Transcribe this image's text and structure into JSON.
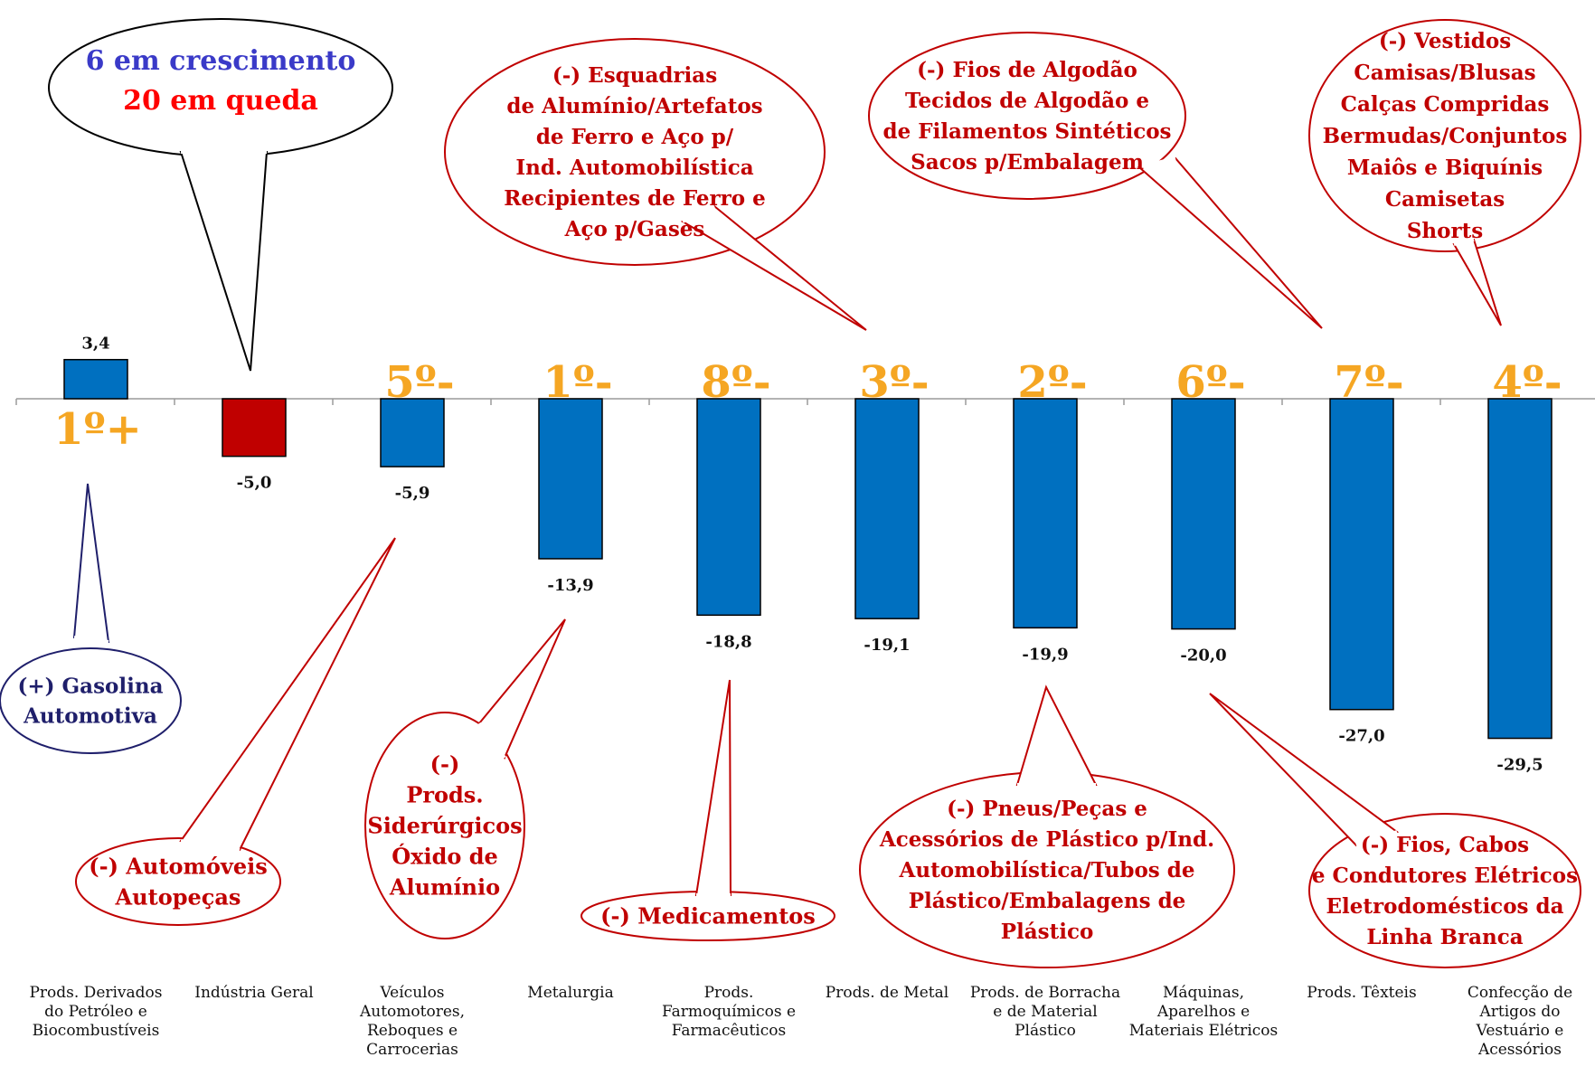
{
  "chart_data": {
    "type": "bar",
    "categories": [
      "Prods. Derivados do Petróleo e Biocombustíveis",
      "Indústria Geral",
      "Veículos Automotores, Reboques e Carrocerias",
      "Metalurgia",
      "Prods. Farmoquímicos e Farmacêuticos",
      "Prods. de Metal",
      "Prods. de Borracha e de Material Plástico",
      "Máquinas, Aparelhos e Materiais Elétricos",
      "Prods. Têxteis",
      "Confecção de Artigos do Vestuário e Acessórios"
    ],
    "category_lines": [
      [
        "Prods. Derivados",
        "do Petróleo e",
        "Biocombustíveis"
      ],
      [
        "Indústria Geral"
      ],
      [
        "Veículos",
        "Automotores,",
        "Reboques e",
        "Carrocerias"
      ],
      [
        "Metalurgia"
      ],
      [
        "Prods.",
        "Farmoquímicos e",
        "Farmacêuticos"
      ],
      [
        "Prods. de Metal"
      ],
      [
        "Prods. de Borracha",
        "e de Material",
        "Plástico"
      ],
      [
        "Máquinas,",
        "Aparelhos e",
        "Materiais Elétricos"
      ],
      [
        "Prods. Têxteis"
      ],
      [
        "Confecção de",
        "Artigos do",
        "Vestuário e",
        "Acessórios"
      ]
    ],
    "values": [
      3.4,
      -5.0,
      -5.9,
      -13.9,
      -18.8,
      -19.1,
      -19.9,
      -20.0,
      -27.0,
      -29.5
    ],
    "value_labels": [
      "3,4",
      "-5,0",
      "-5,9",
      "-13,9",
      "-18,8",
      "-19,1",
      "-19,9",
      "-20,0",
      "-27,0",
      "-29,5"
    ],
    "ranks": [
      "1º+",
      "",
      "5º-",
      "1º-",
      "8º-",
      "3º-",
      "2º-",
      "6º-",
      "7º-",
      "4º-"
    ],
    "bar_colors": [
      "#0070C0",
      "#C00000",
      "#0070C0",
      "#0070C0",
      "#0070C0",
      "#0070C0",
      "#0070C0",
      "#0070C0",
      "#0070C0",
      "#0070C0"
    ],
    "ylim": [
      -30,
      3.4
    ],
    "grid": false,
    "title": "",
    "xlabel": "",
    "ylabel": ""
  },
  "summary": {
    "growth": "6 em crescimento",
    "decline": "20 em queda"
  },
  "callouts": [
    {
      "id": "gasolina",
      "lines": [
        "(+)  Gasolina",
        "Automotiva"
      ]
    },
    {
      "id": "automoveis",
      "lines": [
        "(-) Automóveis",
        "Autopeças"
      ]
    },
    {
      "id": "siderurgicos",
      "lines": [
        "(-)",
        "Prods.",
        "Siderúrgicos",
        "Óxido de",
        "Alumínio"
      ]
    },
    {
      "id": "esquadrias",
      "lines": [
        "(-) Esquadrias",
        "de Alumínio/Artefatos",
        "de Ferro e Aço p/",
        "Ind. Automobilística",
        "Recipientes de Ferro e",
        "Aço p/Gases"
      ]
    },
    {
      "id": "medicamentos",
      "lines": [
        "(-) Medicamentos"
      ]
    },
    {
      "id": "fios-algodao",
      "lines": [
        "(-) Fios de Algodão",
        "Tecidos de Algodão e",
        "de Filamentos Sintéticos",
        "Sacos p/Embalagem"
      ]
    },
    {
      "id": "pneus",
      "lines": [
        "(-) Pneus/Peças e",
        "Acessórios de Plástico p/Ind.",
        "Automobilística/Tubos de",
        "Plástico/Embalagens de",
        "Plástico"
      ]
    },
    {
      "id": "fios-cabos",
      "lines": [
        "(-)  Fios, Cabos",
        "e Condutores Elétricos",
        "Eletrodomésticos da",
        "Linha Branca"
      ]
    },
    {
      "id": "vestidos",
      "lines": [
        "(-) Vestidos",
        "Camisas/Blusas",
        "Calças Compridas",
        "Bermudas/Conjuntos",
        "Maiôs e Biquínis",
        "Camisetas",
        "Shorts"
      ]
    }
  ],
  "colors": {
    "bar_blue": "#0070C0",
    "bar_red": "#C00000",
    "rank_orange": "#F5A623",
    "callout_red": "#C00000",
    "callout_navy": "#1F1F6B",
    "growth_blue": "#3A3AC8",
    "decline_red": "#FF0000"
  }
}
